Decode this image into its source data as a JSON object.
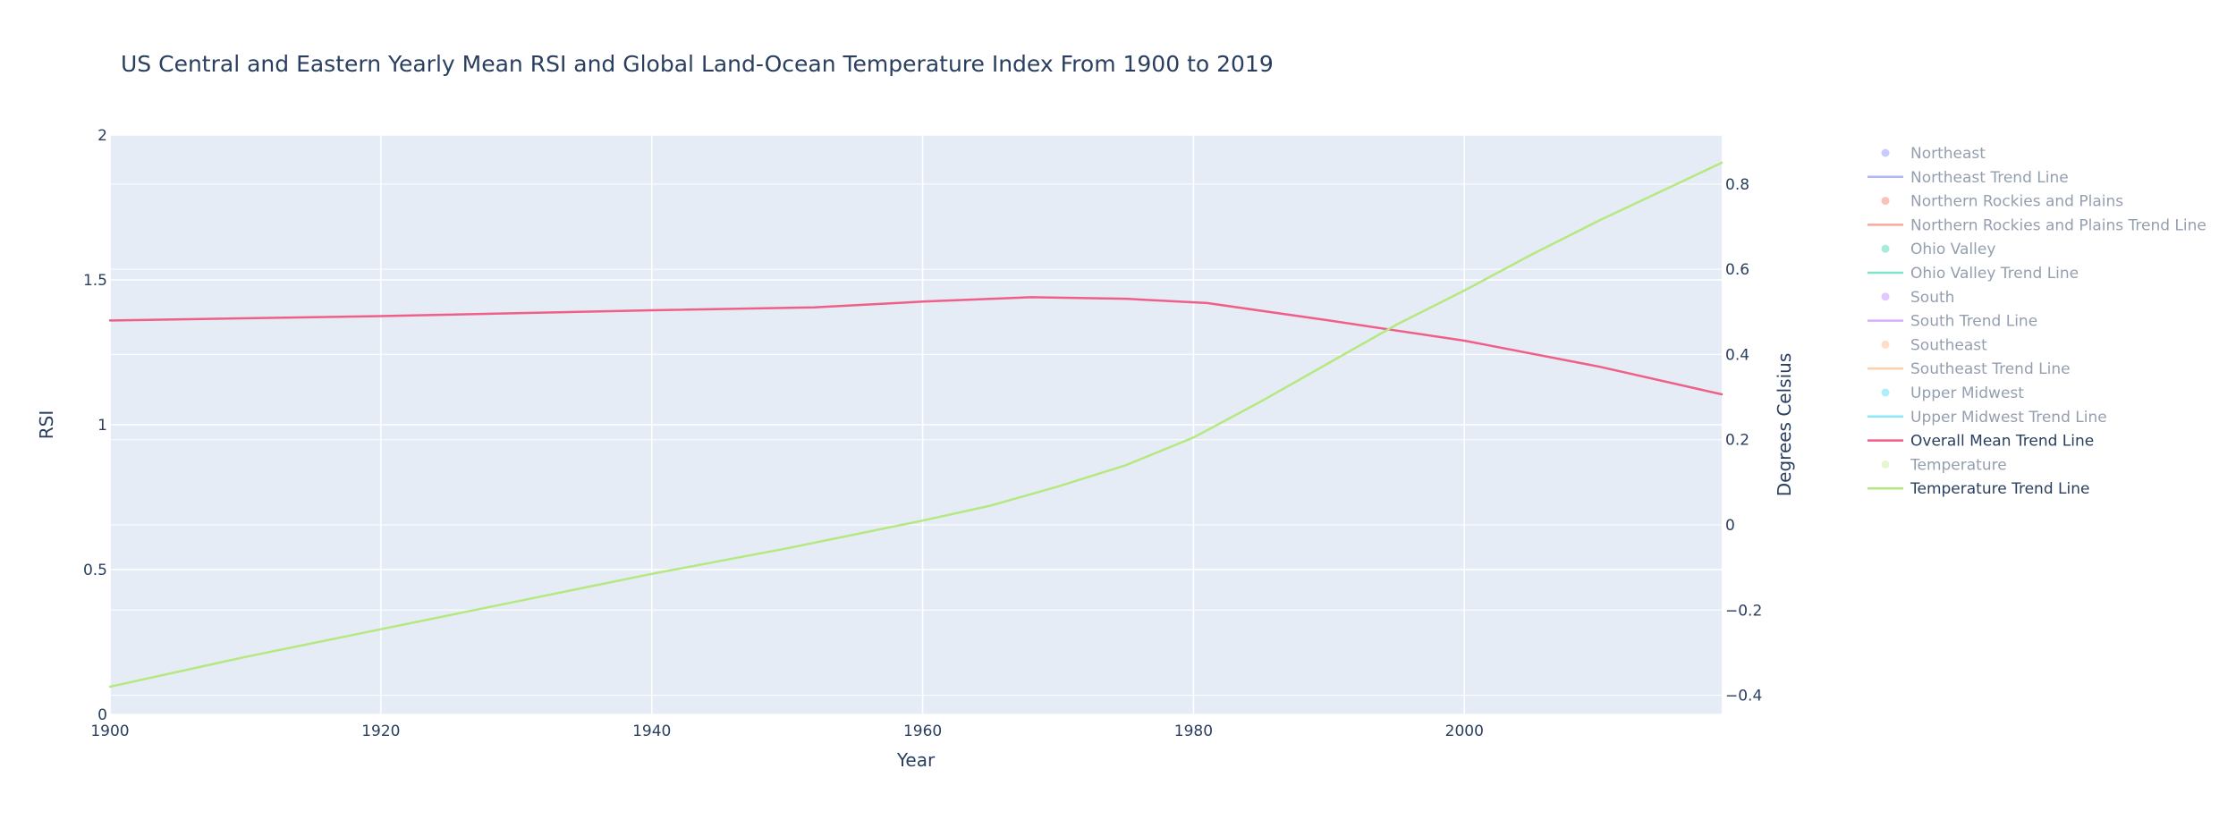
{
  "chart_data": {
    "type": "line",
    "title": "US Central and Eastern Yearly Mean RSI and Global Land-Ocean Temperature Index From 1900 to 2019",
    "xlabel": "Year",
    "ylabel": "RSI",
    "y2label": "Degrees Celsius",
    "xlim": [
      1900,
      2019
    ],
    "ylim": [
      0,
      2
    ],
    "y2lim": [
      -0.445,
      0.915
    ],
    "x_ticks": [
      "1900",
      "1920",
      "1940",
      "1960",
      "1980",
      "2000"
    ],
    "y_ticks": [
      "0",
      "0.5",
      "1",
      "1.5",
      "2"
    ],
    "y2_ticks": [
      "−0.4",
      "−0.2",
      "0",
      "0.2",
      "0.4",
      "0.6",
      "0.8"
    ],
    "x_tick_values": [
      1900,
      1920,
      1940,
      1960,
      1980,
      2000
    ],
    "y_tick_values": [
      0,
      0.5,
      1,
      1.5,
      2
    ],
    "y2_tick_values": [
      -0.4,
      -0.2,
      0,
      0.2,
      0.4,
      0.6,
      0.8
    ],
    "grid": true,
    "legend_position": "right",
    "series": [
      {
        "name": "Overall Mean Trend Line",
        "axis": "y",
        "color": "#ef5f88",
        "x": [
          1900,
          1920,
          1940,
          1952,
          1960,
          1968,
          1975,
          1981,
          1990,
          2000,
          2010,
          2019
        ],
        "y": [
          1.36,
          1.375,
          1.395,
          1.405,
          1.425,
          1.44,
          1.435,
          1.42,
          1.36,
          1.29,
          1.2,
          1.105
        ]
      },
      {
        "name": "Temperature Trend Line",
        "axis": "y2",
        "color": "#b6e880",
        "x": [
          1900,
          1910,
          1920,
          1930,
          1940,
          1950,
          1960,
          1965,
          1970,
          1975,
          1980,
          1985,
          1990,
          1995,
          2000,
          2005,
          2010,
          2015,
          2019
        ],
        "y": [
          -0.38,
          -0.31,
          -0.245,
          -0.18,
          -0.115,
          -0.055,
          0.01,
          0.045,
          0.09,
          0.14,
          0.205,
          0.29,
          0.38,
          0.47,
          0.55,
          0.635,
          0.715,
          0.79,
          0.85
        ]
      }
    ]
  },
  "legend": {
    "items": [
      {
        "label": "Northeast",
        "kind": "marker",
        "color": "#636efa",
        "dimmed": true
      },
      {
        "label": "Northeast Trend Line",
        "kind": "line",
        "color": "#636efa",
        "dimmed": true
      },
      {
        "label": "Northern Rockies and Plains",
        "kind": "marker",
        "color": "#ef553b",
        "dimmed": true
      },
      {
        "label": "Northern Rockies and Plains Trend Line",
        "kind": "line",
        "color": "#ef553b",
        "dimmed": true
      },
      {
        "label": "Ohio Valley",
        "kind": "marker",
        "color": "#00cc96",
        "dimmed": true
      },
      {
        "label": "Ohio Valley Trend Line",
        "kind": "line",
        "color": "#00cc96",
        "dimmed": true
      },
      {
        "label": "South",
        "kind": "marker",
        "color": "#ab63fa",
        "dimmed": true
      },
      {
        "label": "South Trend Line",
        "kind": "line",
        "color": "#ab63fa",
        "dimmed": true
      },
      {
        "label": "Southeast",
        "kind": "marker",
        "color": "#ffa15a",
        "dimmed": true
      },
      {
        "label": "Southeast Trend Line",
        "kind": "line",
        "color": "#ffa15a",
        "dimmed": true
      },
      {
        "label": "Upper Midwest",
        "kind": "marker",
        "color": "#19d3f3",
        "dimmed": true
      },
      {
        "label": "Upper Midwest Trend Line",
        "kind": "line",
        "color": "#19d3f3",
        "dimmed": true
      },
      {
        "label": "Overall Mean Trend Line",
        "kind": "line",
        "color": "#ef5f88",
        "dimmed": false
      },
      {
        "label": "Temperature",
        "kind": "marker",
        "color": "#b6e880",
        "dimmed": true
      },
      {
        "label": "Temperature Trend Line",
        "kind": "line",
        "color": "#b6e880",
        "dimmed": false
      }
    ]
  },
  "colors": {
    "plot_bg": "#e5ecf6",
    "grid": "#ffffff",
    "text": "#2a3f5f"
  }
}
